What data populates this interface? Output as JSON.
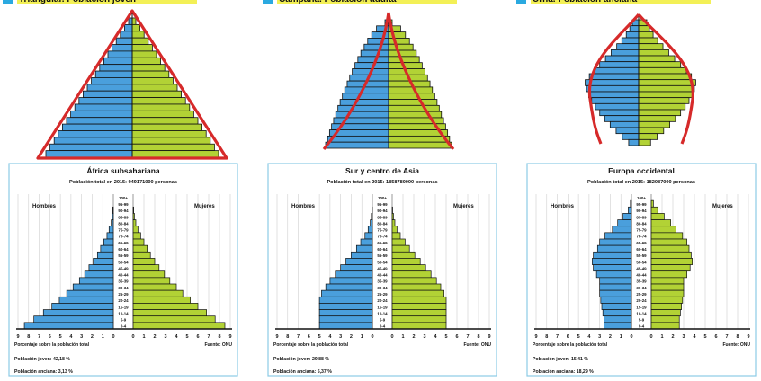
{
  "colors": {
    "men": "#4a9fdc",
    "women": "#b2d235",
    "outline": "#d62a2a",
    "panel_border": "#8ccbe6",
    "header_highlight": "#f3f056",
    "header_swatch": "#2aa9e0"
  },
  "headers": [
    "Triangular. Población joven",
    "Campana. Población adulta",
    "Urna. Población anciana"
  ],
  "age_groups": [
    "100+",
    "95-99",
    "90-94",
    "85-89",
    "80-84",
    "75-79",
    "70-74",
    "65-69",
    "60-64",
    "55-59",
    "50-54",
    "45-49",
    "40-44",
    "35-39",
    "30-34",
    "25-29",
    "20-24",
    "15-19",
    "10-14",
    "5-9",
    "0-4"
  ],
  "common": {
    "men_label": "Hombres",
    "women_label": "Mujeres",
    "xaxis_note": "Porcentaje sobre la población total",
    "source": "Fuente: ONU",
    "ticks": [
      "9",
      "8",
      "7",
      "6",
      "5",
      "4",
      "3",
      "2",
      "1",
      "0"
    ]
  },
  "chart_data": [
    {
      "type": "bar",
      "orientation": "population-pyramid",
      "title": "África subsahariana",
      "subtitle": "Población total en 2015: 949171000 personas",
      "xlim": [
        0,
        9
      ],
      "men": [
        0.0,
        0.0,
        0.05,
        0.1,
        0.2,
        0.4,
        0.6,
        0.9,
        1.2,
        1.5,
        1.9,
        2.3,
        2.7,
        3.2,
        3.8,
        4.4,
        5.1,
        5.8,
        6.6,
        7.5,
        8.4
      ],
      "women": [
        0.0,
        0.0,
        0.05,
        0.12,
        0.25,
        0.45,
        0.7,
        1.0,
        1.3,
        1.6,
        2.0,
        2.4,
        2.9,
        3.4,
        4.0,
        4.6,
        5.3,
        6.0,
        6.8,
        7.6,
        8.5
      ],
      "notes": [
        "Población joven: 42,18 %",
        "Población anciana: 3,13 %"
      ]
    },
    {
      "type": "bar",
      "orientation": "population-pyramid",
      "title": "Sur y centro de Asia",
      "subtitle": "Población total en 2015: 1858780000 personas",
      "xlim": [
        0,
        9
      ],
      "men": [
        0.0,
        0.0,
        0.03,
        0.1,
        0.2,
        0.4,
        0.7,
        1.1,
        1.5,
        2.0,
        2.5,
        3.0,
        3.5,
        4.0,
        4.4,
        4.8,
        5.0,
        5.0,
        5.0,
        5.0,
        5.0
      ],
      "women": [
        0.0,
        0.0,
        0.04,
        0.12,
        0.25,
        0.45,
        0.75,
        1.2,
        1.6,
        2.1,
        2.6,
        3.1,
        3.6,
        4.1,
        4.5,
        4.8,
        5.0,
        5.0,
        5.0,
        5.0,
        5.0
      ],
      "notes": [
        "Población joven: 29,88 %",
        "Población anciana: 5,37 %"
      ]
    },
    {
      "type": "bar",
      "orientation": "population-pyramid",
      "title": "Europa occidental",
      "subtitle": "Población total en 2015: 182087000 personas",
      "xlim": [
        0,
        9
      ],
      "men": [
        0.0,
        0.1,
        0.3,
        0.8,
        1.3,
        1.8,
        2.5,
        3.0,
        3.2,
        3.6,
        3.7,
        3.6,
        3.3,
        3.0,
        3.0,
        3.0,
        2.9,
        2.8,
        2.7,
        2.6,
        2.6
      ],
      "women": [
        0.0,
        0.2,
        0.6,
        1.2,
        1.8,
        2.3,
        2.9,
        3.3,
        3.5,
        3.7,
        3.8,
        3.6,
        3.3,
        3.0,
        3.0,
        3.0,
        2.9,
        2.8,
        2.7,
        2.6,
        2.6
      ],
      "notes": [
        "Población joven: 15,41 %",
        "Población anciana: 18,29 %"
      ]
    }
  ]
}
